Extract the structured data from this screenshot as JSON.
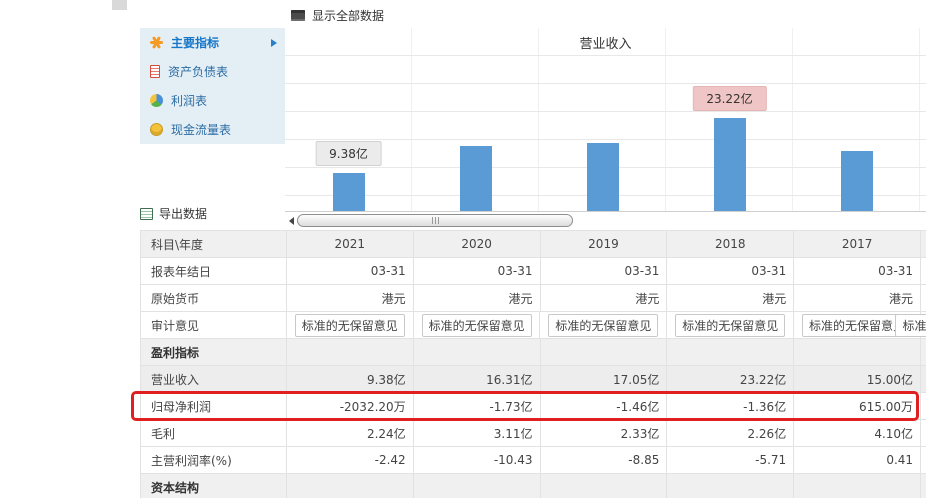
{
  "topbar": {
    "show_all": "显示全部数据"
  },
  "sidebar": {
    "items": [
      {
        "label": "主要指标",
        "active": true
      },
      {
        "label": "资产负债表",
        "active": false
      },
      {
        "label": "利润表",
        "active": false
      },
      {
        "label": "现金流量表",
        "active": false
      }
    ]
  },
  "export": {
    "label": "导出数据"
  },
  "chart_data": {
    "type": "bar",
    "title": "营业收入",
    "categories": [
      "2021",
      "2020",
      "2019",
      "2018",
      "2017"
    ],
    "values": [
      9.38,
      16.31,
      17.05,
      23.22,
      15.0
    ],
    "unit": "亿",
    "ylim": [
      0,
      46
    ],
    "grid": true,
    "tooltips": [
      {
        "index": 0,
        "text": "9.38亿",
        "style": "gray"
      },
      {
        "index": 3,
        "text": "23.22亿",
        "style": "pink"
      }
    ]
  },
  "table": {
    "header": {
      "label": "科目\\年度",
      "years": [
        "2021",
        "2020",
        "2019",
        "2018",
        "2017"
      ]
    },
    "rows": [
      {
        "label": "报表年结日",
        "values": [
          "03-31",
          "03-31",
          "03-31",
          "03-31",
          "03-31"
        ]
      },
      {
        "label": "原始货币",
        "values": [
          "港元",
          "港元",
          "港元",
          "港元",
          "港元"
        ]
      },
      {
        "label": "审计意见",
        "values": [
          "标准的无保留意见",
          "标准的无保留意见",
          "标准的无保留意见",
          "标准的无保留意见",
          "标准的无保留意见"
        ]
      },
      {
        "label": "盈利指标",
        "section": true,
        "values": [
          "",
          "",
          "",
          "",
          ""
        ]
      },
      {
        "label": "营业收入",
        "selected": true,
        "values": [
          "9.38亿",
          "16.31亿",
          "17.05亿",
          "23.22亿",
          "15.00亿"
        ]
      },
      {
        "label": "归母净利润",
        "highlighted": true,
        "values": [
          "-2032.20万",
          "-1.73亿",
          "-1.46亿",
          "-1.36亿",
          "615.00万"
        ]
      },
      {
        "label": "毛利",
        "values": [
          "2.24亿",
          "3.11亿",
          "2.33亿",
          "2.26亿",
          "4.10亿"
        ]
      },
      {
        "label": "主营利润率(%)",
        "values": [
          "-2.42",
          "-10.43",
          "-8.85",
          "-5.71",
          "0.41"
        ]
      },
      {
        "label": "资本结构",
        "section": true,
        "values": [
          "",
          "",
          "",
          "",
          ""
        ]
      }
    ],
    "partial_audit": "标准的无保留意见"
  },
  "colors": {
    "bar": "#5b9bd5",
    "highlight": "#e02020",
    "tooltip-pink": "#f0c5c5",
    "tooltip-gray": "#ebebeb",
    "sidebar-bg": "#e4eef5",
    "active-blue": "#1676c8"
  }
}
